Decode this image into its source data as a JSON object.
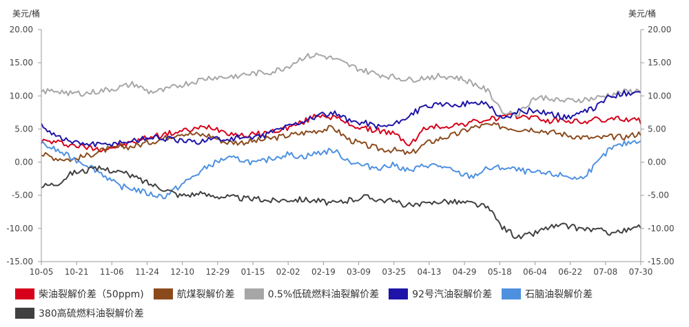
{
  "chart_data": {
    "type": "line",
    "ylabel_left": "美元/桶",
    "ylabel_right": "美元/桶",
    "ylim": [
      -15,
      20
    ],
    "yticks": [
      "20.00",
      "15.00",
      "10.00",
      "5.00",
      "0.00",
      "-5.00",
      "-10.00",
      "-15.00"
    ],
    "ytick_values": [
      20,
      15,
      10,
      5,
      0,
      -5,
      -10,
      -15
    ],
    "x_tick_labels": [
      "10-05",
      "10-21",
      "11-06",
      "11-24",
      "12-10",
      "12-29",
      "01-15",
      "02-02",
      "02-19",
      "03-09",
      "03-25",
      "04-13",
      "04-29",
      "05-18",
      "06-04",
      "06-22",
      "07-08",
      "07-30"
    ],
    "legend_position": "bottom",
    "grid": false,
    "series": [
      {
        "name": "柴油裂解价差（50ppm)",
        "color": "#d7001a",
        "values": [
          3.2,
          3.0,
          2.6,
          2.2,
          2.0,
          2.4,
          3.0,
          3.8,
          4.2,
          4.6,
          5.0,
          5.4,
          4.6,
          4.0,
          4.2,
          4.6,
          5.2,
          6.0,
          7.2,
          6.8,
          5.8,
          5.0,
          4.8,
          4.2,
          2.6,
          5.2,
          5.4,
          5.6,
          6.0,
          6.4,
          6.8,
          7.0,
          6.8,
          6.2,
          6.4,
          6.0,
          6.4,
          6.4,
          6.6,
          6.2
        ]
      },
      {
        "name": "航煤裂解价差",
        "color": "#8b4a1c",
        "values": [
          1.2,
          0.6,
          0.4,
          1.0,
          1.8,
          2.2,
          2.4,
          3.0,
          3.6,
          4.4,
          4.2,
          4.0,
          3.0,
          3.0,
          3.2,
          3.6,
          4.0,
          4.4,
          4.8,
          5.2,
          3.4,
          2.6,
          2.0,
          1.8,
          1.2,
          2.8,
          3.6,
          4.2,
          5.2,
          5.6,
          5.4,
          5.0,
          5.0,
          4.6,
          4.2,
          3.8,
          3.6,
          3.8,
          3.8,
          4.4
        ]
      },
      {
        "name": "0.5%低硫燃料油裂解价差",
        "color": "#a6a6a6",
        "values": [
          10.6,
          10.8,
          10.4,
          10.4,
          10.8,
          11.2,
          11.8,
          10.6,
          10.8,
          11.6,
          12.2,
          12.8,
          12.8,
          13.2,
          13.4,
          13.6,
          14.4,
          15.8,
          16.2,
          15.6,
          14.6,
          13.8,
          13.2,
          12.8,
          12.4,
          12.8,
          13.0,
          12.8,
          12.0,
          10.8,
          7.8,
          7.2,
          9.6,
          9.8,
          9.2,
          9.4,
          9.6,
          10.2,
          10.6,
          10.8
        ]
      },
      {
        "name": "92号汽油裂解价差",
        "color": "#1e14a8",
        "values": [
          5.6,
          4.0,
          3.0,
          2.8,
          2.6,
          3.0,
          3.2,
          3.8,
          3.6,
          3.2,
          3.0,
          3.6,
          3.4,
          3.8,
          3.6,
          4.6,
          5.4,
          6.2,
          7.0,
          7.4,
          6.2,
          6.0,
          5.4,
          5.6,
          7.2,
          8.4,
          8.6,
          8.8,
          8.8,
          9.0,
          6.4,
          7.6,
          7.8,
          7.4,
          6.8,
          7.2,
          8.2,
          10.0,
          10.4,
          10.8
        ]
      },
      {
        "name": "石脑油裂解价差",
        "color": "#4d90e0",
        "values": [
          2.8,
          1.8,
          0.6,
          -0.4,
          -1.8,
          -3.6,
          -4.0,
          -4.8,
          -5.2,
          -3.6,
          -2.0,
          -0.4,
          0.6,
          0.4,
          -0.2,
          0.6,
          1.2,
          0.8,
          1.4,
          1.8,
          0.2,
          -0.6,
          -0.8,
          -0.4,
          -1.4,
          -0.4,
          -0.6,
          -1.6,
          -2.2,
          -1.0,
          -0.8,
          -1.2,
          -1.6,
          -1.8,
          -2.0,
          -2.6,
          -0.6,
          2.0,
          2.8,
          3.4
        ]
      },
      {
        "name": "380高硫燃料油裂解价差",
        "color": "#404040",
        "values": [
          -3.6,
          -3.2,
          -1.6,
          -1.2,
          -1.0,
          -1.4,
          -2.2,
          -3.2,
          -4.0,
          -5.0,
          -4.8,
          -5.0,
          -5.2,
          -5.4,
          -5.6,
          -5.8,
          -5.6,
          -5.6,
          -5.8,
          -6.2,
          -5.8,
          -5.2,
          -5.6,
          -6.0,
          -6.6,
          -6.4,
          -5.8,
          -6.0,
          -6.2,
          -6.8,
          -9.8,
          -11.4,
          -10.8,
          -9.8,
          -9.6,
          -10.0,
          -10.2,
          -10.6,
          -10.4,
          -9.8
        ]
      }
    ]
  }
}
